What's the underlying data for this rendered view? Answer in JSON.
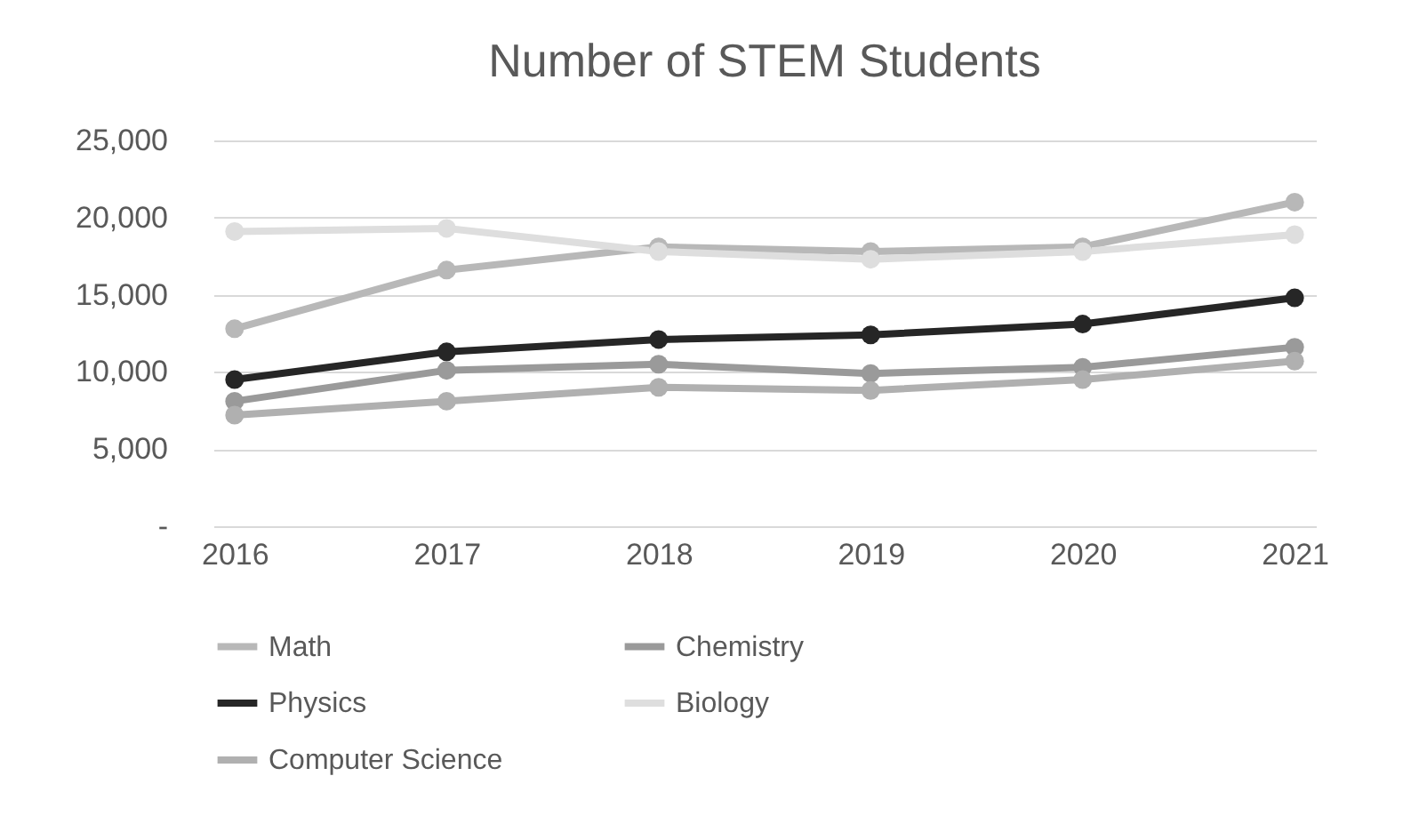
{
  "chart_data": {
    "type": "line",
    "title": "Number of STEM Students",
    "categories": [
      "2016",
      "2017",
      "2018",
      "2019",
      "2020",
      "2021"
    ],
    "series": [
      {
        "name": "Math",
        "color": "#b8b8b8",
        "values": [
          12800,
          16600,
          18100,
          17800,
          18100,
          21000
        ]
      },
      {
        "name": "Chemistry",
        "color": "#9a9a9a",
        "values": [
          8100,
          10100,
          10500,
          9900,
          10300,
          11600
        ]
      },
      {
        "name": "Physics",
        "color": "#262626",
        "values": [
          9500,
          11300,
          12100,
          12400,
          13100,
          14800
        ]
      },
      {
        "name": "Biology",
        "color": "#dedede",
        "values": [
          19100,
          19300,
          17800,
          17300,
          17800,
          18900
        ]
      },
      {
        "name": "Computer Science",
        "color": "#b0b0b0",
        "values": [
          7200,
          8100,
          9000,
          8800,
          9500,
          10700
        ]
      }
    ],
    "ylim": [
      0,
      25000
    ],
    "yticks": [
      {
        "value": 0,
        "label": "-"
      },
      {
        "value": 5000,
        "label": "5,000"
      },
      {
        "value": 10000,
        "label": "10,000"
      },
      {
        "value": 15000,
        "label": "15,000"
      },
      {
        "value": 20000,
        "label": "20,000"
      },
      {
        "value": 25000,
        "label": "25,000"
      }
    ],
    "grid": "y",
    "legend": "bottom",
    "marker": "circle",
    "line_style": "solid"
  }
}
